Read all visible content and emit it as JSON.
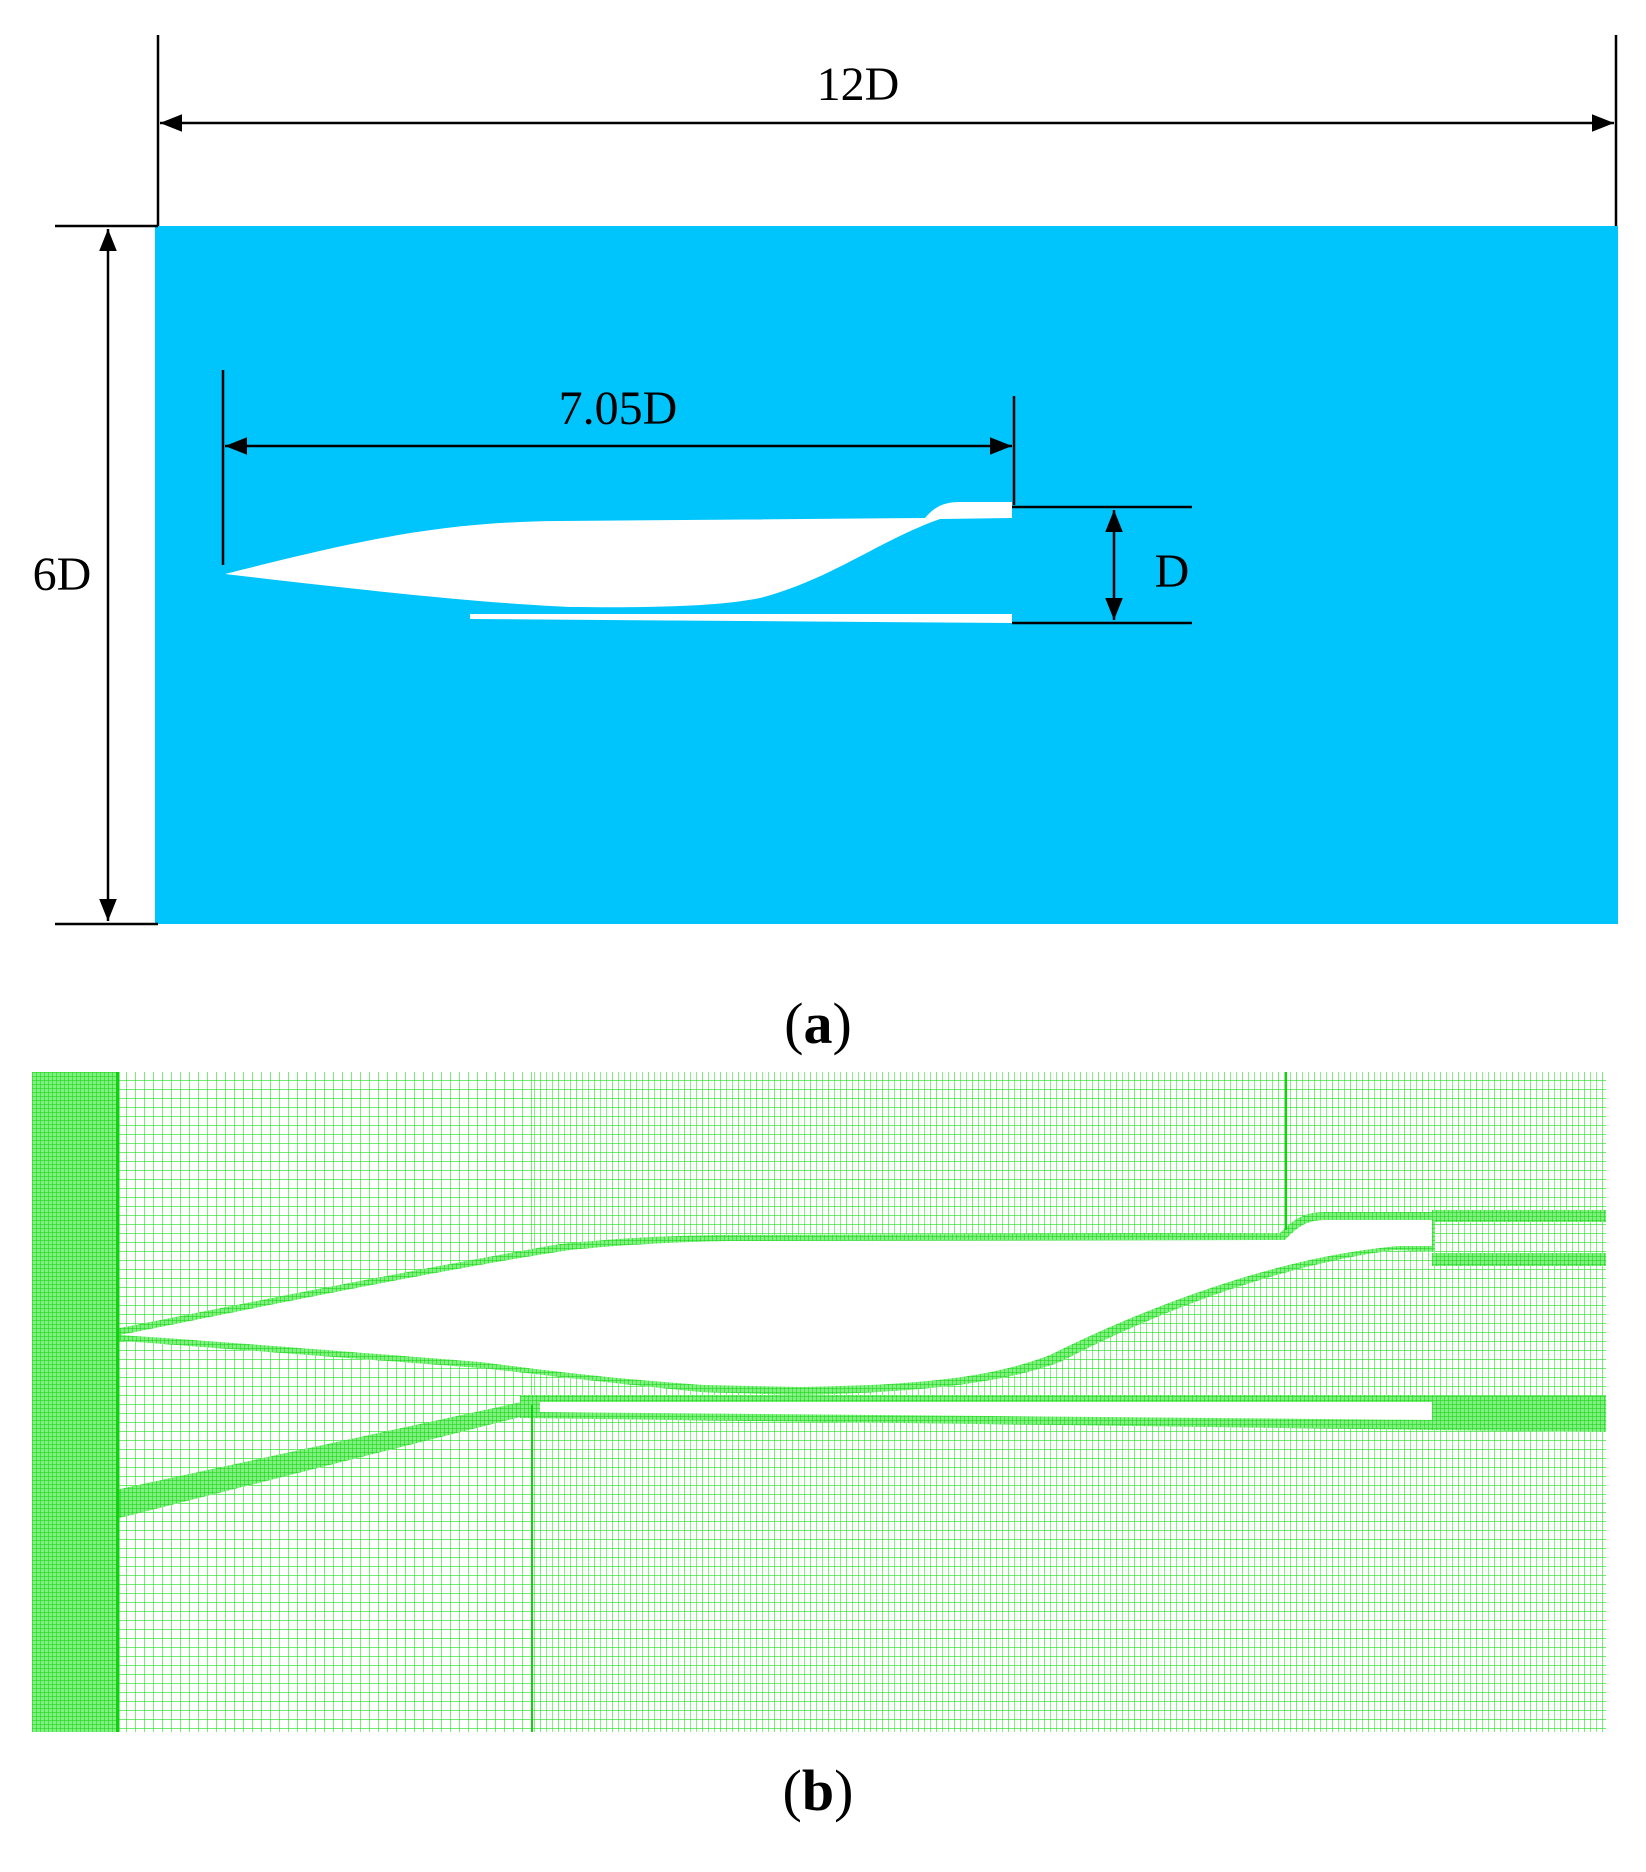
{
  "panel_a": {
    "caption_letter": "a",
    "domain_color": "#00c5fc",
    "width_label": "12D",
    "height_label": "6D",
    "body_length_label": "7.05D",
    "diameter_label": "D"
  },
  "panel_b": {
    "caption_letter": "b",
    "mesh_color": "#00dd00",
    "mesh_dense_color": "#10e010"
  }
}
